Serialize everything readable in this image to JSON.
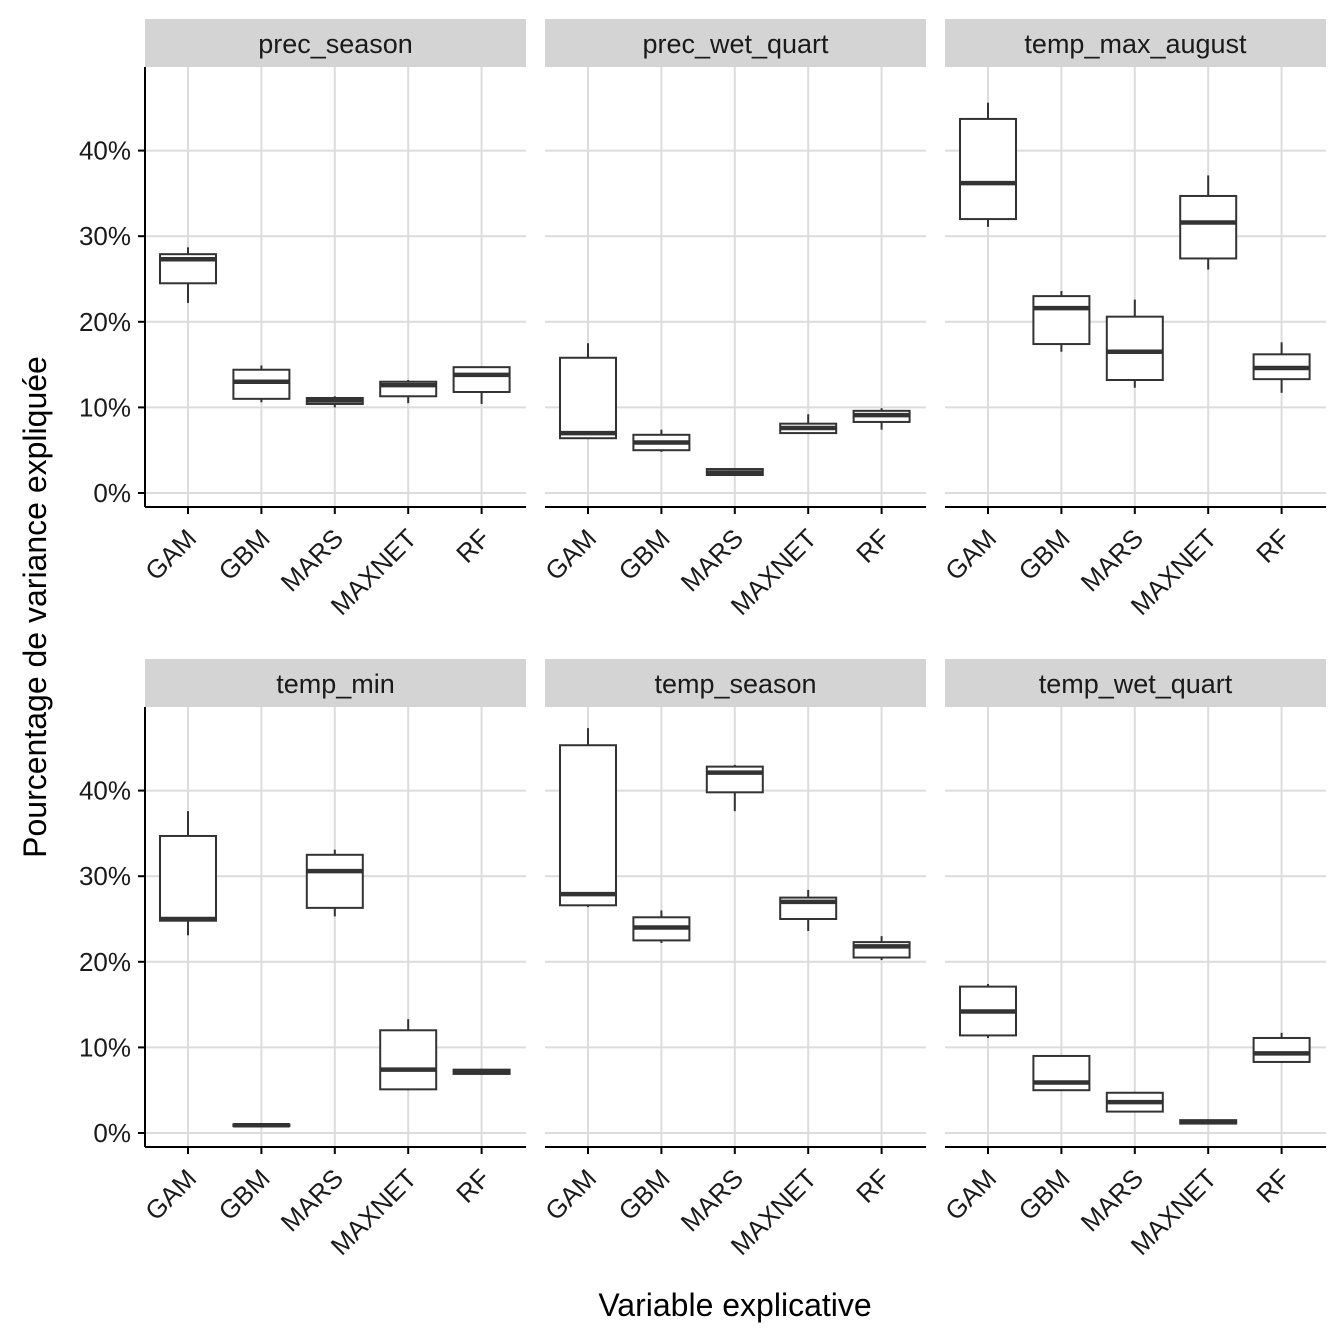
{
  "chart_data": {
    "type": "boxplot",
    "xlabel": "Variable explicative",
    "ylabel": "Pourcentage de variance expliquée",
    "categories": [
      "GAM",
      "GBM",
      "MARS",
      "MAXNET",
      "RF"
    ],
    "y_ticks": [
      "0%",
      "10%",
      "20%",
      "30%",
      "40%"
    ],
    "ylim": [
      -1.5,
      50
    ],
    "grid": true,
    "facets": [
      {
        "name": "prec_season",
        "boxes": [
          {
            "category": "GAM",
            "min": 22.2,
            "q1": 24.5,
            "median": 27.3,
            "q3": 27.9,
            "max": 28.7
          },
          {
            "category": "GBM",
            "min": 10.6,
            "q1": 11.0,
            "median": 13.0,
            "q3": 14.4,
            "max": 14.9
          },
          {
            "category": "MARS",
            "min": 10.0,
            "q1": 10.4,
            "median": 10.8,
            "q3": 11.1,
            "max": 11.3
          },
          {
            "category": "MAXNET",
            "min": 10.5,
            "q1": 11.3,
            "median": 12.6,
            "q3": 13.0,
            "max": 13.2
          },
          {
            "category": "RF",
            "min": 10.4,
            "q1": 11.8,
            "median": 13.8,
            "q3": 14.7,
            "max": 14.8
          }
        ]
      },
      {
        "name": "prec_wet_quart",
        "boxes": [
          {
            "category": "GAM",
            "min": 6.3,
            "q1": 6.4,
            "median": 7.0,
            "q3": 15.8,
            "max": 17.5
          },
          {
            "category": "GBM",
            "min": 4.8,
            "q1": 5.0,
            "median": 5.9,
            "q3": 6.8,
            "max": 7.4
          },
          {
            "category": "MARS",
            "min": 2.0,
            "q1": 2.1,
            "median": 2.4,
            "q3": 2.8,
            "max": 2.9
          },
          {
            "category": "MAXNET",
            "min": 6.9,
            "q1": 7.0,
            "median": 7.6,
            "q3": 8.1,
            "max": 9.2
          },
          {
            "category": "RF",
            "min": 7.4,
            "q1": 8.3,
            "median": 9.1,
            "q3": 9.6,
            "max": 9.9
          }
        ]
      },
      {
        "name": "temp_max_august",
        "boxes": [
          {
            "category": "GAM",
            "min": 31.1,
            "q1": 32.0,
            "median": 36.2,
            "q3": 43.7,
            "max": 45.6
          },
          {
            "category": "GBM",
            "min": 16.5,
            "q1": 17.4,
            "median": 21.6,
            "q3": 23.0,
            "max": 23.6
          },
          {
            "category": "MARS",
            "min": 12.3,
            "q1": 13.2,
            "median": 16.5,
            "q3": 20.6,
            "max": 22.6
          },
          {
            "category": "MAXNET",
            "min": 26.1,
            "q1": 27.4,
            "median": 31.6,
            "q3": 34.7,
            "max": 37.1
          },
          {
            "category": "RF",
            "min": 11.7,
            "q1": 13.3,
            "median": 14.6,
            "q3": 16.2,
            "max": 17.6
          }
        ]
      },
      {
        "name": "temp_min",
        "boxes": [
          {
            "category": "GAM",
            "min": 23.1,
            "q1": 24.8,
            "median": 25.0,
            "q3": 34.7,
            "max": 37.6
          },
          {
            "category": "GBM",
            "min": 0.7,
            "q1": 0.8,
            "median": 0.9,
            "q3": 1.0,
            "max": 1.1
          },
          {
            "category": "MARS",
            "min": 25.3,
            "q1": 26.3,
            "median": 30.6,
            "q3": 32.5,
            "max": 33.1
          },
          {
            "category": "MAXNET",
            "min": 5.0,
            "q1": 5.1,
            "median": 7.4,
            "q3": 12.0,
            "max": 13.3
          },
          {
            "category": "RF",
            "min": 6.8,
            "q1": 6.9,
            "median": 7.1,
            "q3": 7.4,
            "max": 7.5
          }
        ]
      },
      {
        "name": "temp_season",
        "boxes": [
          {
            "category": "GAM",
            "min": 26.4,
            "q1": 26.6,
            "median": 27.9,
            "q3": 45.3,
            "max": 47.3
          },
          {
            "category": "GBM",
            "min": 22.2,
            "q1": 22.5,
            "median": 24.0,
            "q3": 25.2,
            "max": 26.0
          },
          {
            "category": "MARS",
            "min": 37.6,
            "q1": 39.8,
            "median": 42.1,
            "q3": 42.8,
            "max": 43.0
          },
          {
            "category": "MAXNET",
            "min": 23.6,
            "q1": 25.0,
            "median": 27.0,
            "q3": 27.5,
            "max": 28.4
          },
          {
            "category": "RF",
            "min": 20.2,
            "q1": 20.5,
            "median": 21.8,
            "q3": 22.3,
            "max": 23.0
          }
        ]
      },
      {
        "name": "temp_wet_quart",
        "boxes": [
          {
            "category": "GAM",
            "min": 11.1,
            "q1": 11.4,
            "median": 14.2,
            "q3": 17.1,
            "max": 17.4
          },
          {
            "category": "GBM",
            "min": 4.9,
            "q1": 5.0,
            "median": 5.9,
            "q3": 9.0,
            "max": 9.1
          },
          {
            "category": "MARS",
            "min": 2.4,
            "q1": 2.5,
            "median": 3.6,
            "q3": 4.7,
            "max": 4.8
          },
          {
            "category": "MAXNET",
            "min": 1.0,
            "q1": 1.1,
            "median": 1.3,
            "q3": 1.5,
            "max": 1.6
          },
          {
            "category": "RF",
            "min": 8.2,
            "q1": 8.3,
            "median": 9.3,
            "q3": 11.1,
            "max": 11.7
          }
        ]
      }
    ]
  }
}
